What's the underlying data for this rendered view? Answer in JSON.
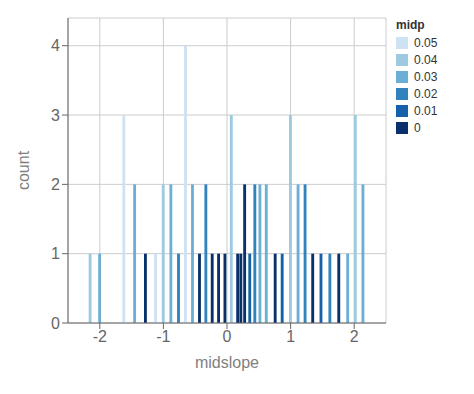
{
  "chart_data": {
    "type": "bar",
    "title": "",
    "xlabel": "midslope",
    "ylabel": "count",
    "legend_title": "midp",
    "x": [
      -2.15,
      -2.0,
      -1.62,
      -1.45,
      -1.28,
      -1.12,
      -1.0,
      -0.88,
      -0.76,
      -0.65,
      -0.54,
      -0.43,
      -0.33,
      -0.23,
      -0.13,
      -0.03,
      0.07,
      0.17,
      0.22,
      0.28,
      0.36,
      0.44,
      0.52,
      0.62,
      0.76,
      0.87,
      1.0,
      1.12,
      1.23,
      1.35,
      1.48,
      1.62,
      1.76,
      1.9,
      2.02,
      2.14
    ],
    "series": [
      {
        "name": "0.05",
        "color": "#cfe2f3",
        "values": [
          null,
          null,
          3,
          null,
          null,
          1,
          null,
          null,
          null,
          4,
          null,
          null,
          null,
          null,
          null,
          null,
          null,
          null,
          null,
          null,
          null,
          null,
          null,
          null,
          null,
          null,
          null,
          null,
          null,
          null,
          null,
          null,
          null,
          null,
          null,
          null
        ]
      },
      {
        "name": "0.04",
        "color": "#9ecae1",
        "values": [
          1,
          null,
          null,
          null,
          null,
          null,
          2,
          null,
          null,
          null,
          null,
          null,
          null,
          null,
          null,
          null,
          3,
          null,
          null,
          null,
          null,
          null,
          null,
          null,
          null,
          null,
          3,
          null,
          null,
          null,
          null,
          null,
          null,
          null,
          3,
          null
        ]
      },
      {
        "name": "0.03",
        "color": "#6baed6",
        "values": [
          null,
          1,
          null,
          2,
          null,
          null,
          null,
          2,
          null,
          null,
          2,
          null,
          null,
          null,
          null,
          null,
          null,
          null,
          null,
          null,
          null,
          null,
          2,
          2,
          null,
          null,
          null,
          2,
          null,
          null,
          null,
          null,
          null,
          1,
          null,
          2
        ]
      },
      {
        "name": "0.02",
        "color": "#3182bd",
        "values": [
          null,
          null,
          null,
          null,
          null,
          null,
          null,
          null,
          1,
          null,
          null,
          null,
          2,
          null,
          null,
          null,
          null,
          null,
          null,
          null,
          null,
          2,
          null,
          null,
          null,
          null,
          null,
          null,
          2,
          null,
          null,
          1,
          null,
          null,
          null,
          null
        ]
      },
      {
        "name": "0.01",
        "color": "#1561a9",
        "values": [
          null,
          null,
          null,
          null,
          null,
          null,
          null,
          null,
          null,
          null,
          null,
          null,
          null,
          null,
          null,
          null,
          null,
          null,
          null,
          null,
          1,
          null,
          null,
          null,
          null,
          1,
          null,
          null,
          null,
          null,
          1,
          null,
          null,
          null,
          null,
          null
        ]
      },
      {
        "name": "0",
        "color": "#08306b",
        "values": [
          null,
          null,
          null,
          null,
          1,
          null,
          null,
          null,
          null,
          null,
          null,
          1,
          null,
          1,
          1,
          1,
          null,
          1,
          1,
          2,
          null,
          null,
          null,
          null,
          1,
          null,
          null,
          null,
          null,
          1,
          null,
          null,
          1,
          null,
          null,
          null
        ]
      }
    ],
    "xlim": [
      -2.5,
      2.5
    ],
    "xticks": [
      -2,
      -1,
      0,
      1,
      2
    ],
    "ylim": [
      0,
      4.4
    ],
    "yticks": [
      0,
      1,
      2,
      3,
      4
    ],
    "grid": true,
    "legend": "right",
    "stacked": true
  }
}
